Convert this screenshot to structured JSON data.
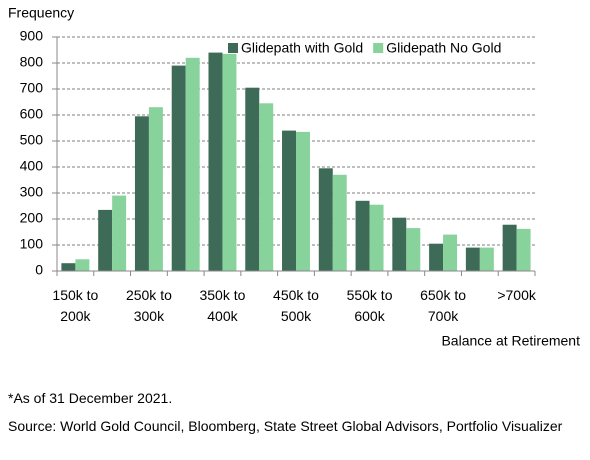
{
  "chart_data": {
    "type": "bar",
    "y_label": "Frequency",
    "x_label": "Balance at Retirement",
    "categories": [
      "150k to 200k",
      null,
      "250k to 300k",
      null,
      "350k to 400k",
      null,
      "450k to 500k",
      null,
      "550k to 600k",
      null,
      "650k to 700k",
      null,
      ">700k"
    ],
    "series": [
      {
        "name": "Glidepath with Gold",
        "color": "#3e6b58",
        "values": [
          30,
          235,
          595,
          790,
          840,
          705,
          540,
          395,
          270,
          205,
          105,
          90,
          178
        ]
      },
      {
        "name": "Glidepath No Gold",
        "color": "#88d29c",
        "values": [
          45,
          290,
          630,
          820,
          835,
          645,
          535,
          370,
          255,
          165,
          140,
          90,
          162
        ]
      }
    ],
    "ylim": [
      0,
      900
    ],
    "yticks": [
      0,
      100,
      200,
      300,
      400,
      500,
      600,
      700,
      800,
      900
    ],
    "grid": true,
    "note": "*As of 31 December 2021.",
    "source": "Source: World Gold Council, Bloomberg, State Street Global Advisors, Portfolio Visualizer"
  }
}
